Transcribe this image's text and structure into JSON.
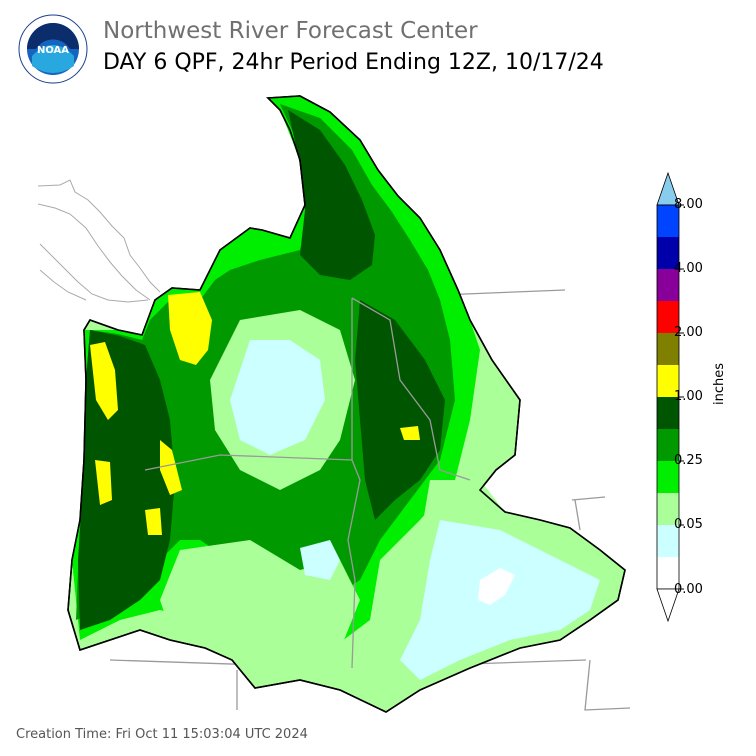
{
  "header": {
    "agency_line": "Northwest River Forecast Center",
    "product_line": "DAY 6 QPF, 24hr Period Ending 12Z, 10/17/24"
  },
  "logo": {
    "center_text": "NOAA",
    "ring_text": "NATIONAL OCEANIC AND ATMOSPHERIC ADMINISTRATION · U.S. DEPARTMENT OF COMMERCE"
  },
  "legend": {
    "units": "inches",
    "tick_labels": [
      "0.00",
      "0.05",
      "0.25",
      "1.00",
      "2.00",
      "4.00",
      "8.00"
    ],
    "bins": [
      {
        "color": "#ffffff"
      },
      {
        "color": "#ccffff"
      },
      {
        "color": "#aaff99"
      },
      {
        "color": "#00ee00"
      },
      {
        "color": "#009900"
      },
      {
        "color": "#005500"
      },
      {
        "color": "#ffff00"
      },
      {
        "color": "#808000"
      },
      {
        "color": "#ff0000"
      },
      {
        "color": "#880099"
      },
      {
        "color": "#0000aa"
      },
      {
        "color": "#0044ff"
      }
    ],
    "over_color": "#88ccee",
    "under_color": "#ffffff"
  },
  "map": {
    "outline_color": "#000000",
    "state_line_color": "#999999",
    "water_color": "#aaaaaa"
  },
  "footer": {
    "creation_time": "Creation Time: Fri Oct 11 15:03:04 UTC 2024"
  }
}
